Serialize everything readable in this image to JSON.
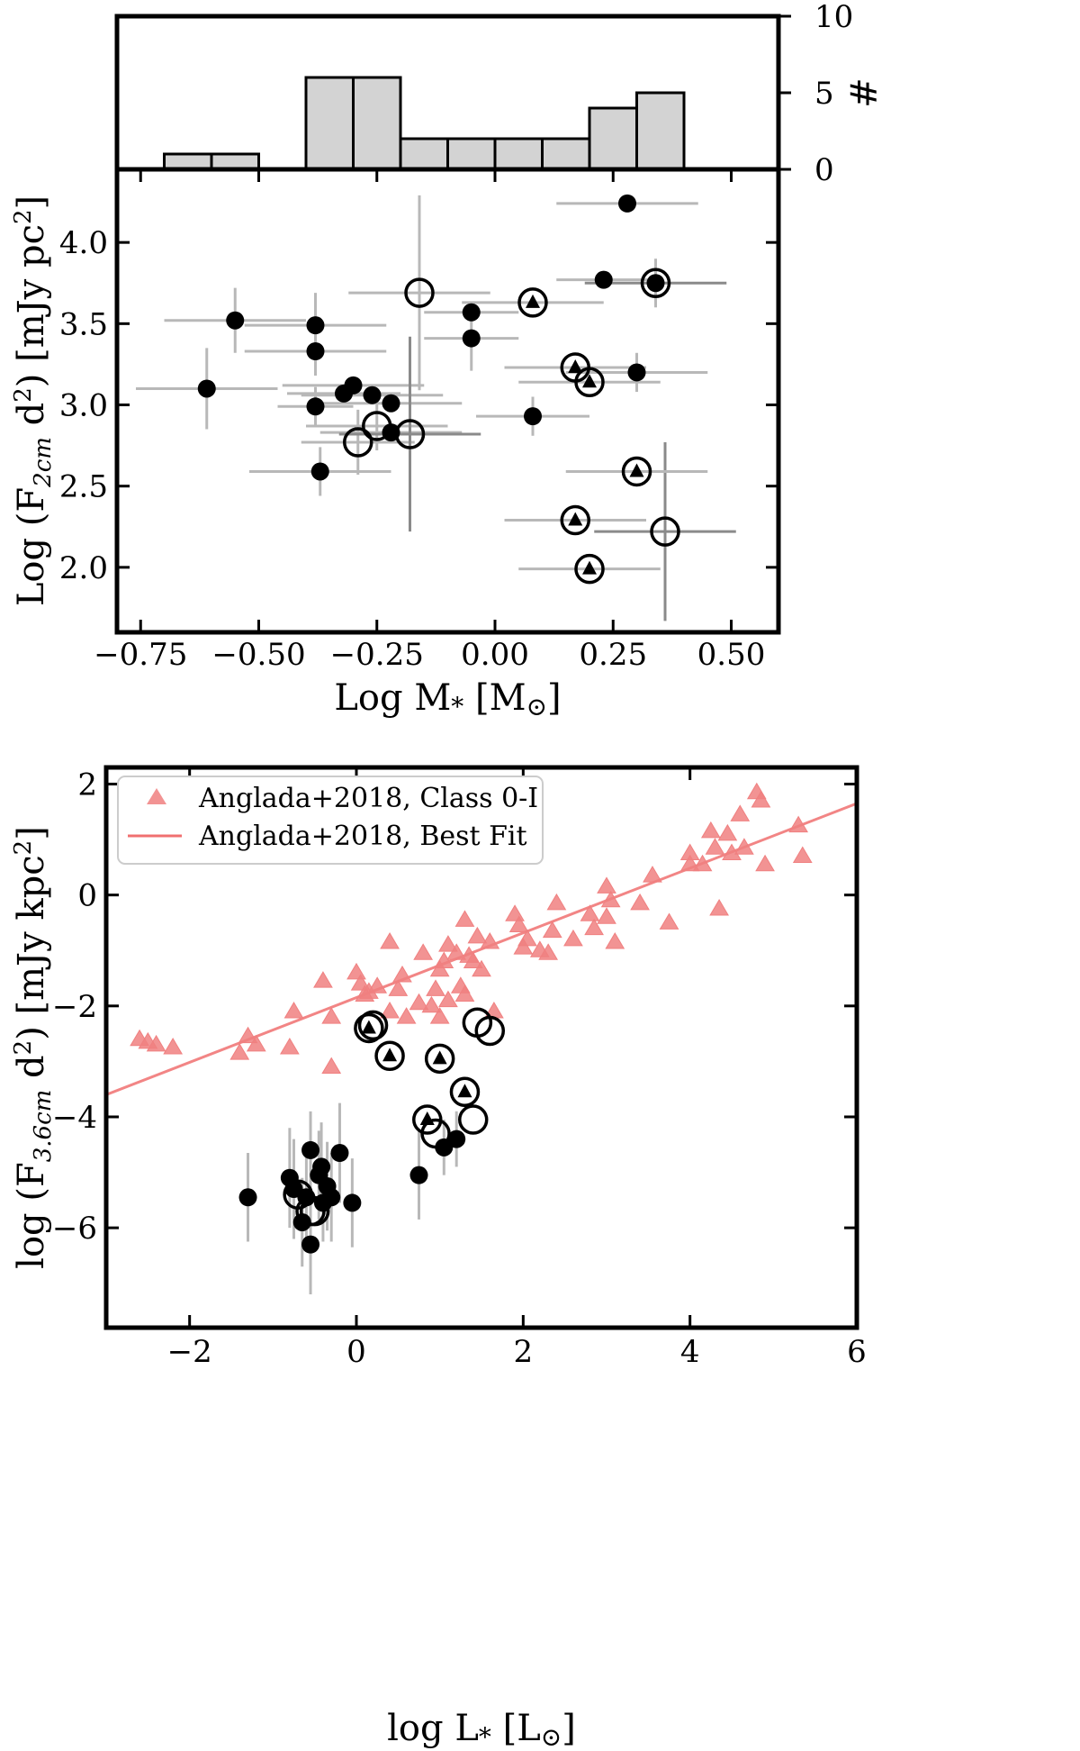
{
  "figure": {
    "panels": 3,
    "colors": {
      "background": "#ffffff",
      "axes": "#000000",
      "hist_fill": "#d3d3d3",
      "errorbar": "#b8b8b8",
      "errorbar_dark": "#8a8a8a",
      "marker": "#000000",
      "anglada": "#f08080",
      "fit_line": "#f07070"
    }
  },
  "chart_data": [
    {
      "id": "histogram",
      "type": "bar",
      "xlabel": "",
      "ylabel": "#",
      "xlim": [
        -0.8,
        0.6
      ],
      "ylim": [
        0,
        10
      ],
      "y_ticks": [
        "0",
        "5",
        "10"
      ],
      "y_ticks_side": "right",
      "bin_edges": [
        -0.7,
        -0.6,
        -0.5,
        -0.4,
        -0.3,
        -0.2,
        -0.1,
        0.0,
        0.1,
        0.2,
        0.3,
        0.4
      ],
      "values": [
        1,
        1,
        0,
        6,
        6,
        2,
        2,
        2,
        2,
        4,
        5
      ]
    },
    {
      "id": "flux-vs-mass",
      "type": "scatter",
      "xlabel": "Log M* [M⊙]",
      "ylabel": "Log (F2cm d²) [mJy pc²]",
      "xlabel_parts": {
        "main": "Log M",
        "sub": "*",
        "unit": " [M",
        "unit_sub": "⊙",
        "end": "]"
      },
      "ylabel_parts": {
        "pre": "Log (F",
        "sub": "2cm",
        "mid": " d",
        "sup1": "2",
        "mid2": ") [mJy pc",
        "sup2": "2",
        "end": "]"
      },
      "xlim": [
        -0.8,
        0.6
      ],
      "ylim": [
        1.6,
        4.45
      ],
      "x_ticks": [
        "−0.75",
        "−0.50",
        "−0.25",
        "0.00",
        "0.25",
        "0.50"
      ],
      "y_ticks": [
        "2.0",
        "2.5",
        "3.0",
        "3.5",
        "4.0"
      ],
      "grid": false,
      "marker_legend": {
        "filled": "black dot",
        "open": "open circle",
        "triangle": "open circle with black triangle"
      },
      "points": [
        {
          "x": 0.28,
          "y": 4.24,
          "m": "filled",
          "xe": 0.15,
          "ye": 0.0,
          "dark": false
        },
        {
          "x": 0.23,
          "y": 3.77,
          "m": "filled",
          "xe": 0.1,
          "ye": 0.0,
          "dark": false
        },
        {
          "x": 0.34,
          "y": 3.75,
          "m": "filled",
          "xe": 0.0,
          "ye": 0.15,
          "dark": false
        },
        {
          "x": 0.34,
          "y": 3.75,
          "m": "triangle",
          "xe": 0.15,
          "ye": 0.0,
          "dark": true
        },
        {
          "x": -0.55,
          "y": 3.52,
          "m": "filled",
          "xe": 0.15,
          "ye": 0.2,
          "dark": false
        },
        {
          "x": -0.38,
          "y": 3.49,
          "m": "filled",
          "xe": 0.15,
          "ye": 0.2,
          "dark": false
        },
        {
          "x": -0.38,
          "y": 3.33,
          "m": "filled",
          "xe": 0.15,
          "ye": 0.15,
          "dark": false
        },
        {
          "x": -0.61,
          "y": 3.1,
          "m": "filled",
          "xe": 0.15,
          "ye": 0.25,
          "dark": false
        },
        {
          "x": -0.38,
          "y": 2.99,
          "m": "filled",
          "xe": 0.08,
          "ye": 0.12,
          "dark": false
        },
        {
          "x": -0.32,
          "y": 3.07,
          "m": "filled",
          "xe": 0.12,
          "ye": 0.0,
          "dark": false
        },
        {
          "x": -0.3,
          "y": 3.12,
          "m": "filled",
          "xe": 0.15,
          "ye": 0.0,
          "dark": false
        },
        {
          "x": -0.26,
          "y": 3.06,
          "m": "filled",
          "xe": 0.15,
          "ye": 0.0,
          "dark": false
        },
        {
          "x": -0.22,
          "y": 3.01,
          "m": "filled",
          "xe": 0.15,
          "ye": 0.0,
          "dark": false
        },
        {
          "x": -0.22,
          "y": 2.83,
          "m": "filled",
          "xe": 0.15,
          "ye": 0.0,
          "dark": false
        },
        {
          "x": -0.37,
          "y": 2.59,
          "m": "filled",
          "xe": 0.15,
          "ye": 0.15,
          "dark": false
        },
        {
          "x": -0.05,
          "y": 3.57,
          "m": "filled",
          "xe": 0.1,
          "ye": 0.0,
          "dark": false
        },
        {
          "x": -0.05,
          "y": 3.41,
          "m": "filled",
          "xe": 0.1,
          "ye": 0.2,
          "dark": false
        },
        {
          "x": 0.08,
          "y": 2.93,
          "m": "filled",
          "xe": 0.12,
          "ye": 0.12,
          "dark": false
        },
        {
          "x": 0.3,
          "y": 3.2,
          "m": "filled",
          "xe": 0.15,
          "ye": 0.12,
          "dark": false
        },
        {
          "x": -0.16,
          "y": 3.69,
          "m": "open",
          "xe": 0.15,
          "ye": 0.6,
          "dark": false
        },
        {
          "x": -0.25,
          "y": 2.87,
          "m": "open",
          "xe": 0.15,
          "ye": 0.15,
          "dark": false
        },
        {
          "x": -0.29,
          "y": 2.77,
          "m": "open",
          "xe": 0.12,
          "ye": 0.2,
          "dark": false
        },
        {
          "x": -0.18,
          "y": 2.82,
          "m": "open",
          "xe": 0.15,
          "ye": 0.6,
          "dark": true
        },
        {
          "x": 0.36,
          "y": 2.22,
          "m": "open",
          "xe": 0.15,
          "ye": 0.55,
          "dark": true
        },
        {
          "x": 0.08,
          "y": 3.63,
          "m": "triangle",
          "xe": 0.15,
          "ye": 0.0,
          "dark": false
        },
        {
          "x": 0.17,
          "y": 3.23,
          "m": "triangle",
          "xe": 0.15,
          "ye": 0.0,
          "dark": false
        },
        {
          "x": 0.2,
          "y": 3.14,
          "m": "triangle",
          "xe": 0.15,
          "ye": 0.0,
          "dark": false
        },
        {
          "x": 0.3,
          "y": 2.59,
          "m": "triangle",
          "xe": 0.15,
          "ye": 0.0,
          "dark": false
        },
        {
          "x": 0.17,
          "y": 2.29,
          "m": "triangle",
          "xe": 0.15,
          "ye": 0.0,
          "dark": false
        },
        {
          "x": 0.2,
          "y": 1.99,
          "m": "triangle",
          "xe": 0.15,
          "ye": 0.0,
          "dark": false
        }
      ]
    },
    {
      "id": "flux-vs-luminosity",
      "type": "scatter",
      "xlabel": "log L* [L⊙]",
      "ylabel": "log (F3.6cm d²) [mJy kpc²]",
      "xlabel_parts": {
        "main": "log L",
        "sub": "*",
        "unit": " [L",
        "unit_sub": "⊙",
        "end": "]"
      },
      "ylabel_parts": {
        "pre": "log (F",
        "sub": "3.6cm",
        "mid": " d",
        "sup1": "2",
        "mid2": ") [mJy kpc",
        "sup2": "2",
        "end": "]"
      },
      "xlim": [
        -3.0,
        6.0
      ],
      "ylim": [
        -7.8,
        2.3
      ],
      "x_ticks": [
        "−2",
        "0",
        "2",
        "4",
        "6"
      ],
      "y_ticks": [
        "−6",
        "−4",
        "−2",
        "0",
        "2"
      ],
      "legend": {
        "placement": "top-left",
        "entries": [
          "Anglada+2018, Class 0-I",
          "Anglada+2018, Best Fit"
        ]
      },
      "fit_line": {
        "name": "Anglada+2018, Best Fit",
        "x": [
          -3.0,
          6.0
        ],
        "y": [
          -3.6,
          1.65
        ]
      },
      "anglada_points": {
        "name": "Anglada+2018, Class 0-I",
        "x": [
          -2.6,
          -2.5,
          -2.4,
          -2.2,
          -1.4,
          -1.3,
          -1.2,
          -0.8,
          -0.75,
          -0.4,
          -0.3,
          -0.3,
          0.0,
          0.05,
          0.1,
          0.15,
          0.25,
          0.4,
          0.4,
          0.5,
          0.55,
          0.6,
          0.75,
          0.8,
          0.9,
          0.95,
          1.0,
          1.0,
          1.05,
          1.1,
          1.1,
          1.2,
          1.25,
          1.3,
          1.3,
          1.35,
          1.4,
          1.45,
          1.5,
          1.6,
          1.65,
          1.9,
          1.95,
          2.0,
          2.05,
          2.2,
          2.3,
          2.35,
          2.4,
          2.6,
          2.8,
          2.85,
          3.0,
          3.0,
          3.05,
          3.1,
          3.4,
          3.55,
          3.75,
          4.0,
          4.0,
          4.15,
          4.25,
          4.3,
          4.35,
          4.45,
          4.5,
          4.6,
          4.65,
          4.8,
          4.85,
          4.9,
          5.3,
          5.35
        ],
        "y": [
          -2.6,
          -2.65,
          -2.7,
          -2.75,
          -2.85,
          -2.55,
          -2.7,
          -2.75,
          -2.1,
          -1.55,
          -2.2,
          -3.1,
          -1.4,
          -1.6,
          -1.8,
          -1.75,
          -1.65,
          -0.85,
          -2.1,
          -1.7,
          -1.45,
          -2.2,
          -1.95,
          -1.05,
          -2.0,
          -1.7,
          -1.35,
          -2.2,
          -1.2,
          -0.9,
          -1.9,
          -1.05,
          -1.65,
          -0.45,
          -1.8,
          -1.1,
          -1.2,
          -0.75,
          -1.35,
          -0.85,
          -2.1,
          -0.35,
          -0.55,
          -0.95,
          -0.8,
          -1.0,
          -1.05,
          -0.65,
          -0.15,
          -0.8,
          -0.35,
          -0.6,
          -0.4,
          0.15,
          -0.1,
          -0.85,
          -0.15,
          0.35,
          -0.5,
          0.75,
          0.55,
          0.55,
          1.15,
          0.85,
          -0.25,
          1.1,
          0.75,
          1.45,
          0.85,
          1.85,
          1.7,
          0.55,
          1.25,
          0.7
        ]
      },
      "points": [
        {
          "x": 0.15,
          "y": -2.4,
          "m": "triangle",
          "xe": 0,
          "ye": 0
        },
        {
          "x": 0.2,
          "y": -2.35,
          "m": "open",
          "xe": 0,
          "ye": 0
        },
        {
          "x": 0.4,
          "y": -2.9,
          "m": "triangle",
          "xe": 0,
          "ye": 0
        },
        {
          "x": 1.0,
          "y": -2.95,
          "m": "triangle",
          "xe": 0,
          "ye": 0
        },
        {
          "x": 1.45,
          "y": -2.3,
          "m": "open",
          "xe": 0,
          "ye": 0
        },
        {
          "x": 1.6,
          "y": -2.45,
          "m": "open",
          "xe": 0,
          "ye": 0
        },
        {
          "x": 1.3,
          "y": -3.55,
          "m": "triangle",
          "xe": 0,
          "ye": 0
        },
        {
          "x": 1.4,
          "y": -4.05,
          "m": "open",
          "xe": 0,
          "ye": 0
        },
        {
          "x": 0.85,
          "y": -4.05,
          "m": "triangle",
          "xe": 0,
          "ye": 0
        },
        {
          "x": 0.95,
          "y": -4.3,
          "m": "open",
          "xe": 0,
          "ye": 0
        },
        {
          "x": 1.05,
          "y": -4.55,
          "m": "filled",
          "xe": 0,
          "ye": 0.5
        },
        {
          "x": 1.2,
          "y": -4.4,
          "m": "filled",
          "xe": 0,
          "ye": 0.5
        },
        {
          "x": 0.75,
          "y": -5.05,
          "m": "filled",
          "xe": 0,
          "ye": 0.8
        },
        {
          "x": -1.3,
          "y": -5.45,
          "m": "filled",
          "xe": 0,
          "ye": 0.8
        },
        {
          "x": -0.8,
          "y": -5.1,
          "m": "filled",
          "xe": 0,
          "ye": 0.9
        },
        {
          "x": -0.75,
          "y": -5.3,
          "m": "filled",
          "xe": 0,
          "ye": 0.9
        },
        {
          "x": -0.7,
          "y": -5.4,
          "m": "open",
          "xe": 0,
          "ye": 0
        },
        {
          "x": -0.65,
          "y": -5.9,
          "m": "filled",
          "xe": 0,
          "ye": 0.8
        },
        {
          "x": -0.6,
          "y": -5.45,
          "m": "filled",
          "xe": 0,
          "ye": 0.9
        },
        {
          "x": -0.55,
          "y": -4.6,
          "m": "filled",
          "xe": 0,
          "ye": 0.7
        },
        {
          "x": -0.55,
          "y": -6.3,
          "m": "filled",
          "xe": 0,
          "ye": 0.9
        },
        {
          "x": -0.55,
          "y": -5.7,
          "m": "open",
          "xe": 0,
          "ye": 0
        },
        {
          "x": -0.5,
          "y": -5.7,
          "m": "open",
          "xe": 0,
          "ye": 0
        },
        {
          "x": -0.45,
          "y": -5.05,
          "m": "filled",
          "xe": 0,
          "ye": 0.8
        },
        {
          "x": -0.42,
          "y": -4.9,
          "m": "filled",
          "xe": 0,
          "ye": 0.8
        },
        {
          "x": -0.4,
          "y": -5.55,
          "m": "filled",
          "xe": 0,
          "ye": 0.7
        },
        {
          "x": -0.35,
          "y": -5.25,
          "m": "filled",
          "xe": 0,
          "ye": 0.8
        },
        {
          "x": -0.3,
          "y": -5.45,
          "m": "filled",
          "xe": 0,
          "ye": 0.8
        },
        {
          "x": -0.2,
          "y": -4.65,
          "m": "filled",
          "xe": 0,
          "ye": 0.9
        },
        {
          "x": -0.05,
          "y": -5.55,
          "m": "filled",
          "xe": 0,
          "ye": 0.8
        }
      ]
    }
  ]
}
